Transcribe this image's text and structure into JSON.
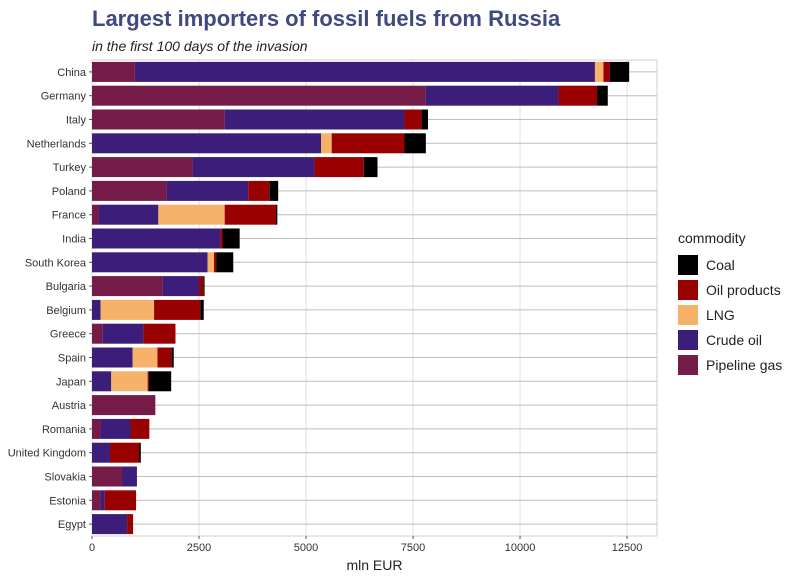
{
  "chart_data": {
    "type": "bar",
    "orientation": "horizontal",
    "stacked": true,
    "title": "Largest importers of fossil fuels from Russia",
    "subtitle": "in the first 100 days of the invasion",
    "xlabel": "mln EUR",
    "ylabel": "",
    "xlim": [
      0,
      13200
    ],
    "xticks": [
      0,
      2500,
      5000,
      7500,
      10000,
      12500
    ],
    "xtick_labels": [
      "0",
      "2500",
      "5000",
      "7500",
      "10000",
      "12500"
    ],
    "grid": true,
    "legend_title": "commodity",
    "legend_position": "right",
    "categories": [
      "China",
      "Germany",
      "Italy",
      "Netherlands",
      "Turkey",
      "Poland",
      "France",
      "India",
      "South Korea",
      "Bulgaria",
      "Belgium",
      "Greece",
      "Spain",
      "Japan",
      "Austria",
      "Romania",
      "United Kingdom",
      "Slovakia",
      "Estonia",
      "Egypt"
    ],
    "series": [
      {
        "name": "Pipeline gas",
        "color": "#741b47",
        "values": [
          1000,
          7800,
          3100,
          0,
          2350,
          1750,
          150,
          0,
          0,
          1650,
          0,
          250,
          0,
          0,
          1480,
          200,
          0,
          700,
          200,
          0
        ]
      },
      {
        "name": "Crude oil",
        "color": "#3c1d7a",
        "values": [
          10750,
          3100,
          4200,
          5350,
          2850,
          1900,
          1400,
          3000,
          2700,
          850,
          200,
          950,
          950,
          450,
          0,
          700,
          420,
          350,
          100,
          820
        ]
      },
      {
        "name": "LNG",
        "color": "#f6b26b",
        "values": [
          200,
          0,
          0,
          250,
          0,
          0,
          1550,
          0,
          150,
          0,
          1250,
          0,
          580,
          850,
          0,
          0,
          0,
          0,
          0,
          0
        ]
      },
      {
        "name": "Oil products",
        "color": "#990000",
        "values": [
          150,
          900,
          400,
          1700,
          1150,
          500,
          1200,
          50,
          50,
          100,
          1080,
          750,
          330,
          30,
          0,
          440,
          680,
          0,
          730,
          140
        ]
      },
      {
        "name": "Coal",
        "color": "#000000",
        "values": [
          450,
          250,
          150,
          500,
          320,
          200,
          30,
          400,
          400,
          30,
          80,
          0,
          50,
          520,
          0,
          0,
          40,
          0,
          0,
          0
        ]
      }
    ],
    "legend_order": [
      "Coal",
      "Oil products",
      "LNG",
      "Crude oil",
      "Pipeline gas"
    ]
  }
}
